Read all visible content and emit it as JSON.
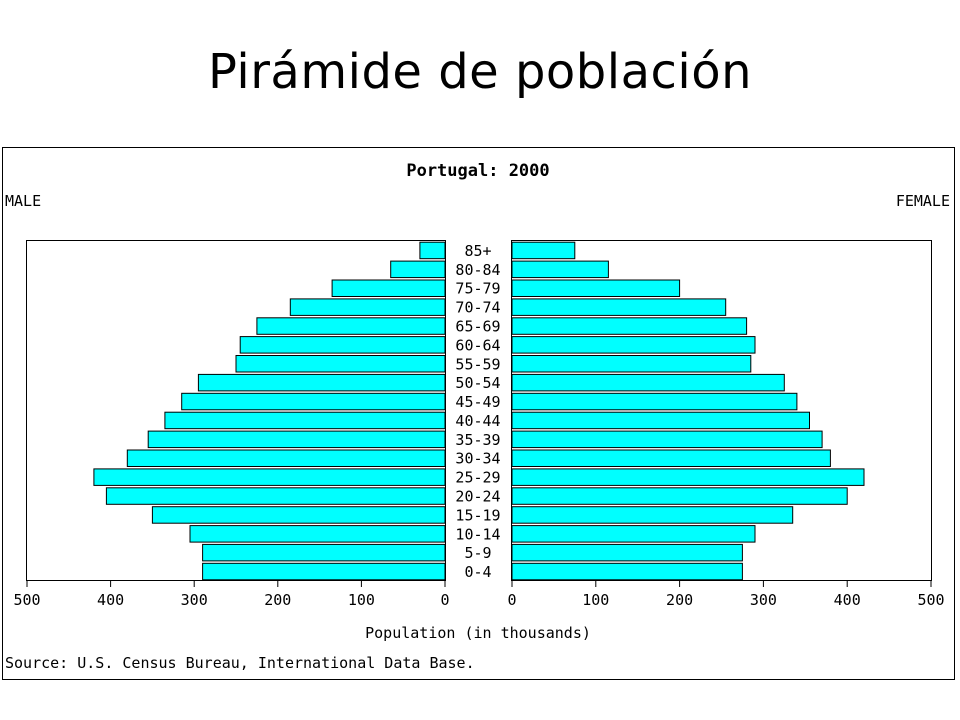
{
  "slide": {
    "title": "Pirámide de población"
  },
  "chart_data": {
    "type": "bar",
    "title": "Portugal: 2000",
    "left_label": "MALE",
    "right_label": "FEMALE",
    "xlabel": "Population (in thousands)",
    "source": "Source: U.S. Census Bureau, International Data Base.",
    "xlim": [
      0,
      500
    ],
    "x_ticks": [
      "500",
      "400",
      "300",
      "200",
      "100",
      "0",
      "0",
      "100",
      "200",
      "300",
      "400",
      "500"
    ],
    "bar_color": "#00ffff",
    "categories": [
      "85+",
      "80-84",
      "75-79",
      "70-74",
      "65-69",
      "60-64",
      "55-59",
      "50-54",
      "45-49",
      "40-44",
      "35-39",
      "30-34",
      "25-29",
      "20-24",
      "15-19",
      "10-14",
      "5-9",
      "0-4"
    ],
    "series": [
      {
        "name": "MALE",
        "values": [
          30,
          65,
          135,
          185,
          225,
          245,
          250,
          295,
          315,
          335,
          355,
          380,
          420,
          405,
          350,
          305,
          290,
          290
        ]
      },
      {
        "name": "FEMALE",
        "values": [
          75,
          115,
          200,
          255,
          280,
          290,
          285,
          325,
          340,
          355,
          370,
          380,
          420,
          400,
          335,
          290,
          275,
          275
        ]
      }
    ]
  }
}
